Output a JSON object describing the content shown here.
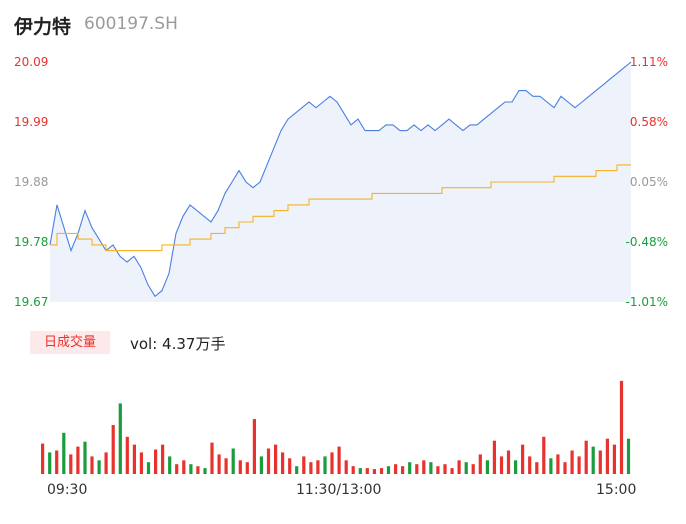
{
  "header": {
    "name": "伊力特",
    "code": "600197.SH"
  },
  "volume_badge": "日成交量",
  "volume_text": "vol: 4.37万手",
  "colors": {
    "up": "#e8322d",
    "down": "#1a9c3e",
    "price_line": "#4a7fe0",
    "avg_line": "#f5b324",
    "neutral": "#999999",
    "area": "#eef2fb"
  },
  "chart_data": {
    "type": "line",
    "subtype": "intraday-timeshare",
    "price_axis": [
      "20.09",
      "19.99",
      "19.88",
      "19.78",
      "19.67"
    ],
    "price_range": [
      19.67,
      20.09
    ],
    "pct_axis": [
      "1.11%",
      "0.58%",
      "0.05%",
      "-0.48%",
      "-1.01%"
    ],
    "x_labels": [
      "09:30",
      "11:30/13:00",
      "15:00"
    ],
    "price": [
      19.77,
      19.84,
      19.8,
      19.76,
      19.79,
      19.83,
      19.8,
      19.78,
      19.76,
      19.77,
      19.75,
      19.74,
      19.75,
      19.73,
      19.7,
      19.68,
      19.69,
      19.72,
      19.79,
      19.82,
      19.84,
      19.83,
      19.82,
      19.81,
      19.83,
      19.86,
      19.88,
      19.9,
      19.88,
      19.87,
      19.88,
      19.91,
      19.94,
      19.97,
      19.99,
      20.0,
      20.01,
      20.02,
      20.01,
      20.02,
      20.03,
      20.02,
      20.0,
      19.98,
      19.99,
      19.97,
      19.97,
      19.97,
      19.98,
      19.98,
      19.97,
      19.97,
      19.98,
      19.97,
      19.98,
      19.97,
      19.98,
      19.99,
      19.98,
      19.97,
      19.98,
      19.98,
      19.99,
      20.0,
      20.01,
      20.02,
      20.02,
      20.04,
      20.04,
      20.03,
      20.03,
      20.02,
      20.01,
      20.03,
      20.02,
      20.01,
      20.02,
      20.03,
      20.04,
      20.05,
      20.06,
      20.07,
      20.08,
      20.09
    ],
    "avg_price": [
      19.77,
      19.79,
      19.79,
      19.79,
      19.78,
      19.78,
      19.77,
      19.77,
      19.76,
      19.76,
      19.76,
      19.76,
      19.76,
      19.76,
      19.76,
      19.76,
      19.77,
      19.77,
      19.77,
      19.77,
      19.78,
      19.78,
      19.78,
      19.79,
      19.79,
      19.8,
      19.8,
      19.81,
      19.81,
      19.82,
      19.82,
      19.82,
      19.83,
      19.83,
      19.84,
      19.84,
      19.84,
      19.85,
      19.85,
      19.85,
      19.85,
      19.85,
      19.85,
      19.85,
      19.85,
      19.85,
      19.86,
      19.86,
      19.86,
      19.86,
      19.86,
      19.86,
      19.86,
      19.86,
      19.86,
      19.86,
      19.87,
      19.87,
      19.87,
      19.87,
      19.87,
      19.87,
      19.87,
      19.88,
      19.88,
      19.88,
      19.88,
      19.88,
      19.88,
      19.88,
      19.88,
      19.88,
      19.89,
      19.89,
      19.89,
      19.89,
      19.89,
      19.89,
      19.9,
      19.9,
      19.9,
      19.91,
      19.91,
      19.91
    ],
    "volume_max": 100,
    "volume": [
      {
        "v": 31,
        "d": "up"
      },
      {
        "v": 22,
        "d": "down"
      },
      {
        "v": 24,
        "d": "up"
      },
      {
        "v": 42,
        "d": "down"
      },
      {
        "v": 20,
        "d": "up"
      },
      {
        "v": 28,
        "d": "up"
      },
      {
        "v": 33,
        "d": "down"
      },
      {
        "v": 18,
        "d": "up"
      },
      {
        "v": 14,
        "d": "down"
      },
      {
        "v": 22,
        "d": "up"
      },
      {
        "v": 50,
        "d": "up"
      },
      {
        "v": 72,
        "d": "down"
      },
      {
        "v": 38,
        "d": "up"
      },
      {
        "v": 30,
        "d": "up"
      },
      {
        "v": 22,
        "d": "up"
      },
      {
        "v": 12,
        "d": "down"
      },
      {
        "v": 25,
        "d": "up"
      },
      {
        "v": 30,
        "d": "up"
      },
      {
        "v": 18,
        "d": "down"
      },
      {
        "v": 10,
        "d": "up"
      },
      {
        "v": 14,
        "d": "up"
      },
      {
        "v": 10,
        "d": "down"
      },
      {
        "v": 8,
        "d": "up"
      },
      {
        "v": 6,
        "d": "down"
      },
      {
        "v": 32,
        "d": "up"
      },
      {
        "v": 20,
        "d": "up"
      },
      {
        "v": 16,
        "d": "up"
      },
      {
        "v": 26,
        "d": "down"
      },
      {
        "v": 14,
        "d": "up"
      },
      {
        "v": 12,
        "d": "up"
      },
      {
        "v": 56,
        "d": "up"
      },
      {
        "v": 18,
        "d": "down"
      },
      {
        "v": 26,
        "d": "up"
      },
      {
        "v": 30,
        "d": "up"
      },
      {
        "v": 22,
        "d": "up"
      },
      {
        "v": 16,
        "d": "up"
      },
      {
        "v": 8,
        "d": "down"
      },
      {
        "v": 18,
        "d": "up"
      },
      {
        "v": 12,
        "d": "up"
      },
      {
        "v": 14,
        "d": "up"
      },
      {
        "v": 18,
        "d": "down"
      },
      {
        "v": 22,
        "d": "up"
      },
      {
        "v": 28,
        "d": "up"
      },
      {
        "v": 14,
        "d": "up"
      },
      {
        "v": 8,
        "d": "up"
      },
      {
        "v": 6,
        "d": "down"
      },
      {
        "v": 6,
        "d": "up"
      },
      {
        "v": 5,
        "d": "up"
      },
      {
        "v": 6,
        "d": "up"
      },
      {
        "v": 8,
        "d": "down"
      },
      {
        "v": 10,
        "d": "up"
      },
      {
        "v": 8,
        "d": "up"
      },
      {
        "v": 12,
        "d": "down"
      },
      {
        "v": 10,
        "d": "up"
      },
      {
        "v": 14,
        "d": "up"
      },
      {
        "v": 12,
        "d": "down"
      },
      {
        "v": 8,
        "d": "up"
      },
      {
        "v": 10,
        "d": "up"
      },
      {
        "v": 6,
        "d": "up"
      },
      {
        "v": 14,
        "d": "up"
      },
      {
        "v": 12,
        "d": "down"
      },
      {
        "v": 10,
        "d": "up"
      },
      {
        "v": 20,
        "d": "up"
      },
      {
        "v": 14,
        "d": "down"
      },
      {
        "v": 34,
        "d": "up"
      },
      {
        "v": 18,
        "d": "up"
      },
      {
        "v": 24,
        "d": "up"
      },
      {
        "v": 14,
        "d": "down"
      },
      {
        "v": 30,
        "d": "up"
      },
      {
        "v": 18,
        "d": "up"
      },
      {
        "v": 12,
        "d": "up"
      },
      {
        "v": 38,
        "d": "up"
      },
      {
        "v": 16,
        "d": "down"
      },
      {
        "v": 20,
        "d": "up"
      },
      {
        "v": 12,
        "d": "up"
      },
      {
        "v": 24,
        "d": "up"
      },
      {
        "v": 18,
        "d": "up"
      },
      {
        "v": 34,
        "d": "up"
      },
      {
        "v": 28,
        "d": "down"
      },
      {
        "v": 24,
        "d": "up"
      },
      {
        "v": 36,
        "d": "up"
      },
      {
        "v": 30,
        "d": "up"
      },
      {
        "v": 95,
        "d": "up"
      },
      {
        "v": 36,
        "d": "down"
      }
    ]
  }
}
